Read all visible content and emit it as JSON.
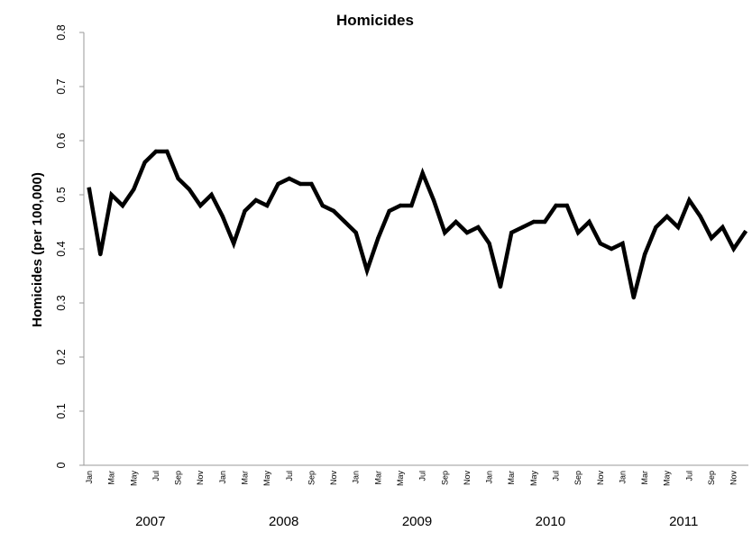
{
  "chart_data": {
    "type": "line",
    "title": "Homicides",
    "xlabel": "",
    "ylabel": "Homicides (per 100,000)",
    "ylim": [
      0,
      0.8
    ],
    "yticks": [
      "0",
      "0.1",
      "0.2",
      "0.3",
      "0.4",
      "0.5",
      "0.6",
      "0.7",
      "0.8"
    ],
    "grid": false,
    "legend": "none",
    "years": [
      "2007",
      "2008",
      "2009",
      "2010",
      "2011"
    ],
    "month_tick_labels": [
      "Jan",
      "Mar",
      "May",
      "Jul",
      "Sep",
      "Nov"
    ],
    "x": [
      "Jan 2007",
      "Feb 2007",
      "Mar 2007",
      "Apr 2007",
      "May 2007",
      "Jun 2007",
      "Jul 2007",
      "Aug 2007",
      "Sep 2007",
      "Oct 2007",
      "Nov 2007",
      "Dec 2007",
      "Jan 2008",
      "Feb 2008",
      "Mar 2008",
      "Apr 2008",
      "May 2008",
      "Jun 2008",
      "Jul 2008",
      "Aug 2008",
      "Sep 2008",
      "Oct 2008",
      "Nov 2008",
      "Dec 2008",
      "Jan 2009",
      "Feb 2009",
      "Mar 2009",
      "Apr 2009",
      "May 2009",
      "Jun 2009",
      "Jul 2009",
      "Aug 2009",
      "Sep 2009",
      "Oct 2009",
      "Nov 2009",
      "Dec 2009",
      "Jan 2010",
      "Feb 2010",
      "Mar 2010",
      "Apr 2010",
      "May 2010",
      "Jun 2010",
      "Jul 2010",
      "Aug 2010",
      "Sep 2010",
      "Oct 2010",
      "Nov 2010",
      "Dec 2010",
      "Jan 2011",
      "Feb 2011",
      "Mar 2011",
      "Apr 2011",
      "May 2011",
      "Jun 2011",
      "Jul 2011",
      "Aug 2011",
      "Sep 2011",
      "Oct 2011",
      "Nov 2011",
      "Dec 2011"
    ],
    "series": [
      {
        "color": "#000000",
        "values": [
          0.51,
          0.39,
          0.5,
          0.48,
          0.51,
          0.56,
          0.58,
          0.58,
          0.53,
          0.51,
          0.48,
          0.5,
          0.46,
          0.41,
          0.47,
          0.49,
          0.48,
          0.52,
          0.53,
          0.52,
          0.52,
          0.48,
          0.47,
          0.45,
          0.43,
          0.36,
          0.42,
          0.47,
          0.48,
          0.48,
          0.54,
          0.49,
          0.43,
          0.45,
          0.43,
          0.44,
          0.41,
          0.33,
          0.43,
          0.44,
          0.45,
          0.45,
          0.48,
          0.48,
          0.43,
          0.45,
          0.41,
          0.4,
          0.41,
          0.31,
          0.39,
          0.44,
          0.46,
          0.44,
          0.49,
          0.46,
          0.42,
          0.44,
          0.4,
          0.43
        ]
      }
    ]
  }
}
